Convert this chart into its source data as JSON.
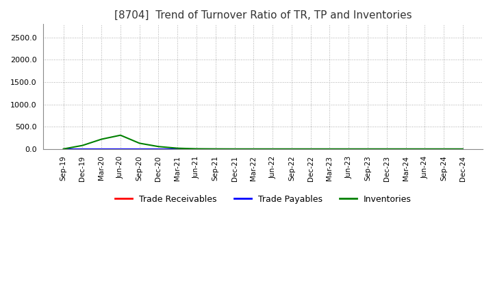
{
  "title": "[8704]  Trend of Turnover Ratio of TR, TP and Inventories",
  "title_fontsize": 11,
  "ylim": [
    0,
    2800
  ],
  "yticks": [
    0.0,
    500.0,
    1000.0,
    1500.0,
    2000.0,
    2500.0
  ],
  "background_color": "#ffffff",
  "grid_color": "#aaaaaa",
  "dates": [
    "Sep-19",
    "Dec-19",
    "Mar-20",
    "Jun-20",
    "Sep-20",
    "Dec-20",
    "Mar-21",
    "Jun-21",
    "Sep-21",
    "Dec-21",
    "Mar-22",
    "Jun-22",
    "Sep-22",
    "Dec-22",
    "Mar-23",
    "Jun-23",
    "Sep-23",
    "Dec-23",
    "Mar-24",
    "Jun-24",
    "Sep-24",
    "Dec-24"
  ],
  "trade_receivables": [
    0.0,
    0.0,
    0.0,
    0.0,
    0.0,
    0.0,
    0.0,
    0.0,
    0.0,
    0.0,
    0.0,
    0.0,
    0.0,
    0.0,
    0.0,
    0.0,
    0.0,
    0.0,
    0.0,
    0.0,
    0.0,
    0.0
  ],
  "trade_payables": [
    0.0,
    0.0,
    0.0,
    0.0,
    0.0,
    0.0,
    0.0,
    0.0,
    0.0,
    0.0,
    0.0,
    0.0,
    0.0,
    0.0,
    0.0,
    0.0,
    0.0,
    0.0,
    0.0,
    0.0,
    0.0,
    0.0
  ],
  "inventories": [
    2.0,
    80.0,
    220.0,
    310.0,
    130.0,
    55.0,
    18.0,
    5.0,
    2.0,
    0.5,
    0.5,
    0.5,
    0.5,
    0.5,
    0.5,
    0.5,
    0.5,
    0.5,
    0.5,
    0.5,
    0.5,
    0.5
  ],
  "tr_color": "#ff0000",
  "tp_color": "#0000ff",
  "inv_color": "#008000",
  "line_width": 1.5,
  "legend_labels": [
    "Trade Receivables",
    "Trade Payables",
    "Inventories"
  ]
}
